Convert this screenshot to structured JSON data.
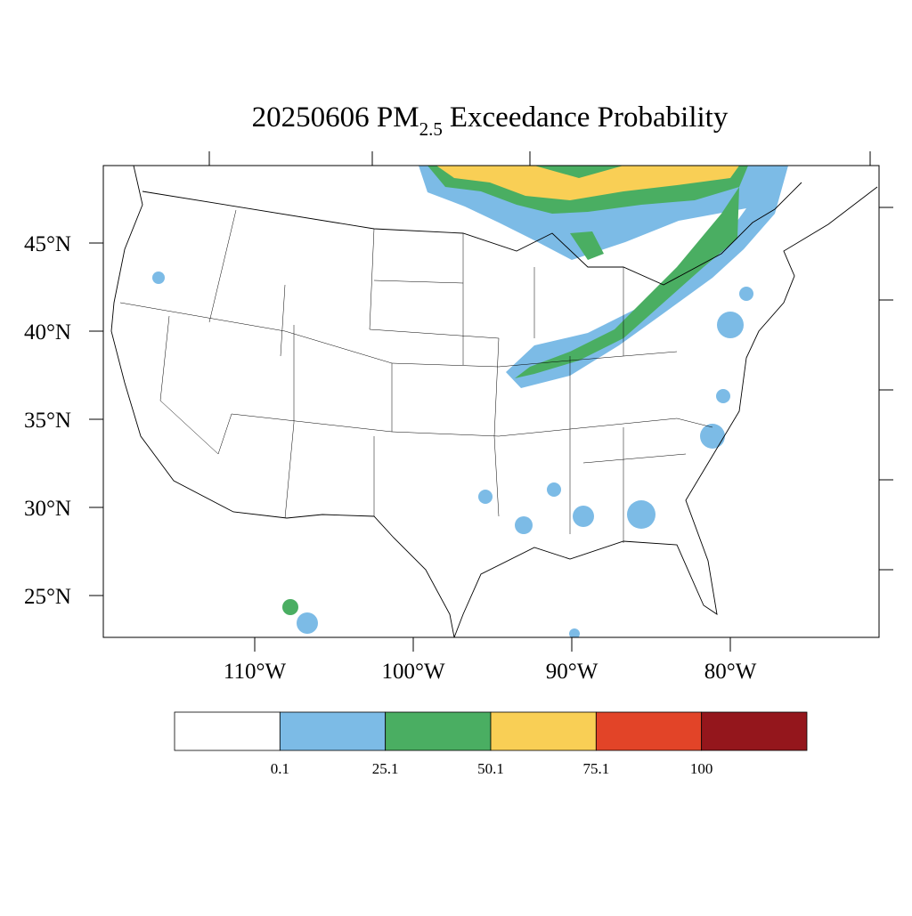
{
  "header": {
    "title_main": "20250606 PM",
    "title_sub": "2.5",
    "title_rest": "Exceedance Probability"
  },
  "axes": {
    "lat_ticks": [
      {
        "value": 45,
        "label": "45°N"
      },
      {
        "value": 40,
        "label": "40°N"
      },
      {
        "value": 35,
        "label": "35°N"
      },
      {
        "value": 30,
        "label": "30°N"
      },
      {
        "value": 25,
        "label": "25°N"
      }
    ],
    "lon_ticks": [
      {
        "value": -110,
        "label": "110°W"
      },
      {
        "value": -100,
        "label": "100°W"
      },
      {
        "value": -90,
        "label": "90°W"
      },
      {
        "value": -80,
        "label": "80°W"
      }
    ]
  },
  "colorbar": {
    "colors": [
      "#ffffff",
      "#7cbbe6",
      "#4aae62",
      "#f9cf55",
      "#e24428",
      "#94161c"
    ],
    "levels": [
      0.1,
      25.1,
      50.1,
      75.1,
      100
    ]
  }
}
